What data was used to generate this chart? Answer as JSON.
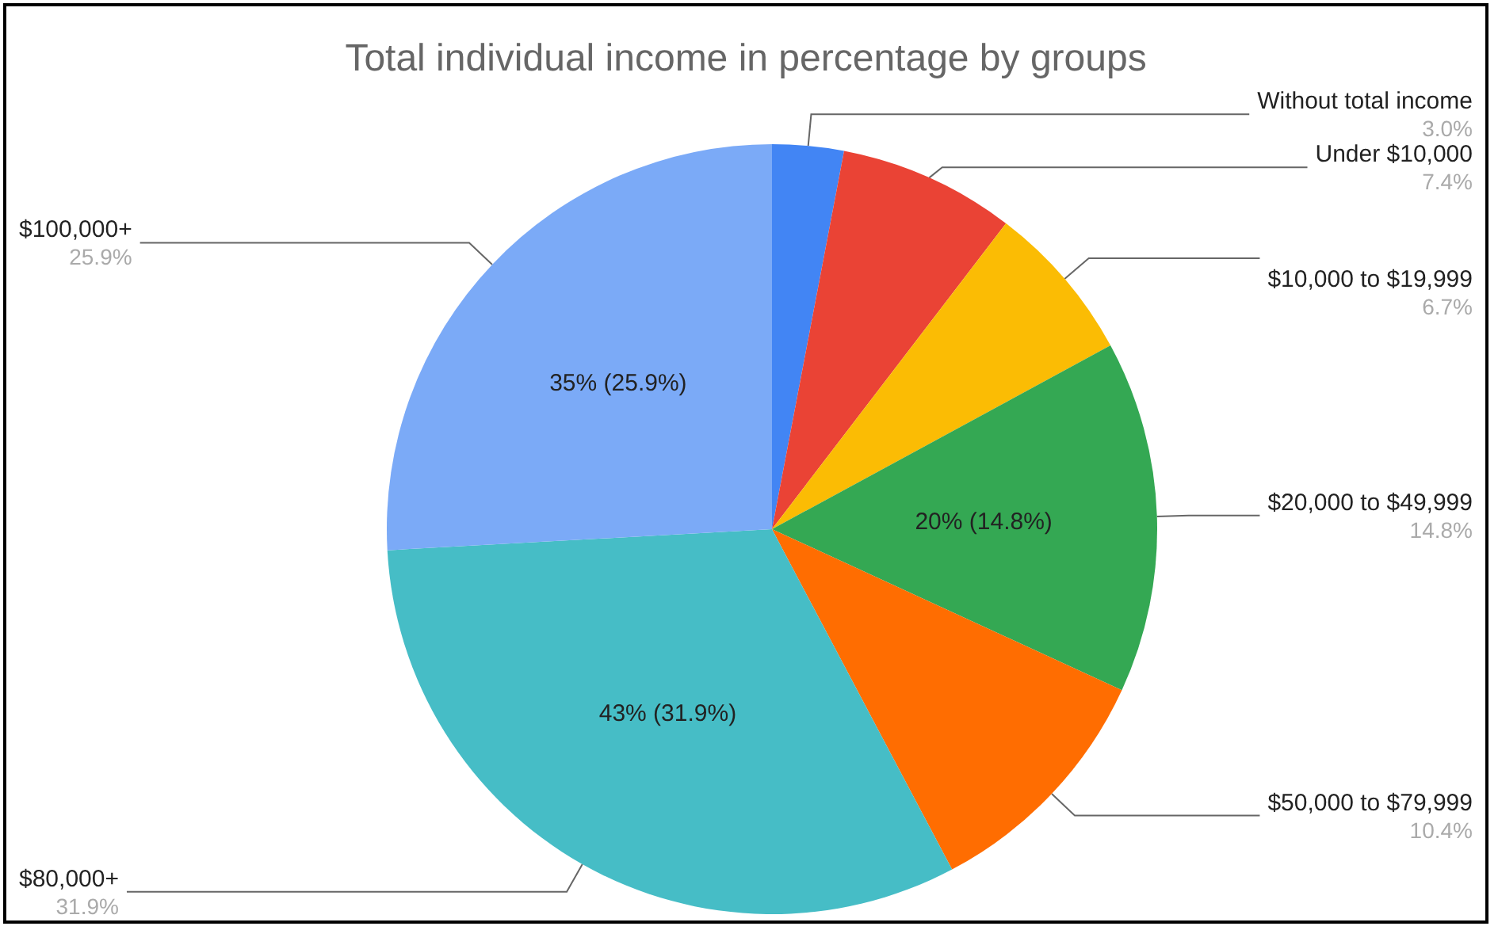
{
  "chart_data": {
    "type": "pie",
    "title": "Total individual income in percentage by groups",
    "categories": [
      "Without total income",
      "Under $10,000",
      "$10,000 to $19,999",
      "$20,000 to $49,999",
      "$50,000 to $79,999",
      "$80,000+",
      "$100,000+"
    ],
    "values": [
      3.0,
      7.4,
      6.7,
      14.8,
      10.4,
      31.9,
      25.9
    ],
    "colors": [
      "#4285f4",
      "#ea4335",
      "#fbbc04",
      "#34a853",
      "#ff6d01",
      "#46bdc6",
      "#7baaf7"
    ],
    "value_labels": [
      "3.0%",
      "7.4%",
      "6.7%",
      "14.8%",
      "10.4%",
      "31.9%",
      "25.9%"
    ],
    "annotations": [
      {
        "text": "20% (14.8%)",
        "x": "$20,000 to $49,999"
      },
      {
        "text": "43% (31.9%)",
        "x": "$80,000+"
      },
      {
        "text": "35% (25.9%)",
        "x": "$100,000+"
      }
    ]
  }
}
